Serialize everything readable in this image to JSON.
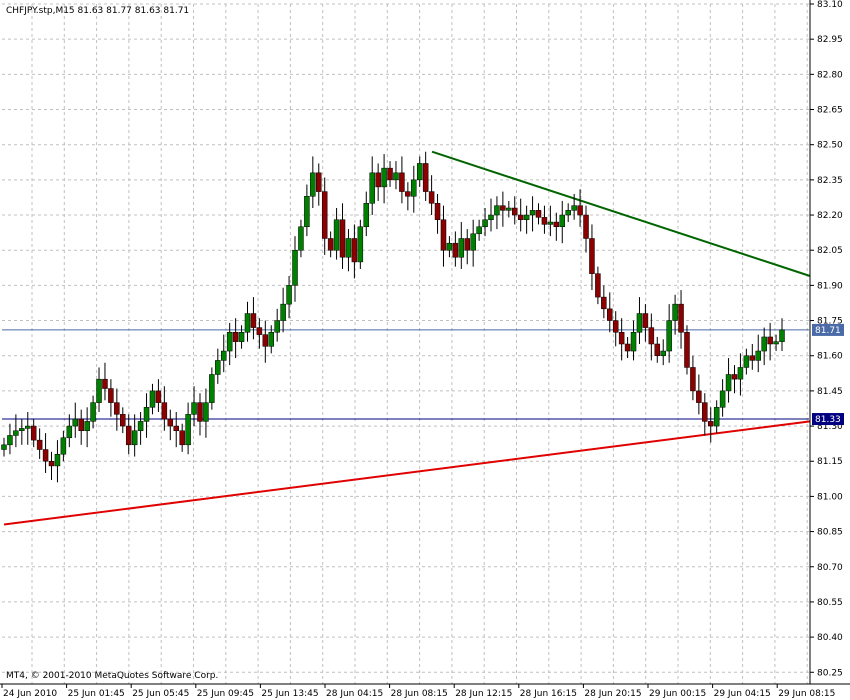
{
  "header": {
    "title": "CHFJPY.stp,M15  81.63 81.77 81.63 81.71",
    "copyright": "MT4, © 2001-2010 MetaQuotes Software Corp."
  },
  "colors": {
    "background": "#ffffff",
    "grid": "#c0c0c0",
    "bull_candle": "#008000",
    "bear_candle": "#8b0000",
    "resistance_line": "#006400",
    "support_line": "#e00000",
    "bid_line": "#4a6aa8",
    "support_hline": "#000080"
  },
  "chart_data": {
    "type": "candlestick",
    "symbol": "CHFJPY.stp",
    "timeframe": "M15",
    "ohlc_current": {
      "open": 81.63,
      "high": 81.77,
      "low": 81.63,
      "close": 81.71
    },
    "ylim": [
      80.2,
      83.1
    ],
    "y_ticks": [
      "83.10",
      "82.95",
      "82.80",
      "82.65",
      "82.50",
      "82.35",
      "82.20",
      "82.05",
      "81.90",
      "81.75",
      "81.60",
      "81.45",
      "81.30",
      "81.15",
      "81.00",
      "80.85",
      "80.70",
      "80.55",
      "80.40",
      "80.25"
    ],
    "x_ticks": [
      "24 Jun 2010",
      "25 Jun 01:45",
      "25 Jun 05:45",
      "25 Jun 09:45",
      "25 Jun 13:45",
      "28 Jun 04:15",
      "28 Jun 08:15",
      "28 Jun 12:15",
      "28 Jun 16:15",
      "28 Jun 20:15",
      "29 Jun 00:15",
      "29 Jun 04:15",
      "29 Jun 08:15"
    ],
    "price_labels": [
      {
        "text": "81.71",
        "value": 81.71,
        "kind": "bid"
      },
      {
        "text": "81.33",
        "value": 81.33,
        "kind": "support"
      }
    ],
    "trendlines": [
      {
        "name": "resistance",
        "color": "#006400",
        "start": {
          "bar": 0,
          "price": 82.47
        },
        "end": {
          "bar": 1,
          "price": 81.94
        }
      },
      {
        "name": "support",
        "color": "#e00000",
        "start": {
          "bar": 0,
          "price": 80.88
        },
        "end": {
          "bar": 1,
          "price": 81.32
        }
      }
    ],
    "closes": [
      81.22,
      81.26,
      81.28,
      81.29,
      81.3,
      81.24,
      81.2,
      81.15,
      81.13,
      81.18,
      81.25,
      81.3,
      81.33,
      81.28,
      81.32,
      81.4,
      81.5,
      81.46,
      81.4,
      81.35,
      81.3,
      81.22,
      81.28,
      81.32,
      81.38,
      81.45,
      81.4,
      81.33,
      81.3,
      81.28,
      81.22,
      81.35,
      81.4,
      81.32,
      81.4,
      81.52,
      81.58,
      81.62,
      81.7,
      81.66,
      81.7,
      81.78,
      81.72,
      81.69,
      81.64,
      81.7,
      81.75,
      81.82,
      81.9,
      82.05,
      82.15,
      82.28,
      82.38,
      82.3,
      82.1,
      82.05,
      82.18,
      82.02,
      82.1,
      82.0,
      82.15,
      82.25,
      82.38,
      82.32,
      82.4,
      82.35,
      82.38,
      82.3,
      82.28,
      82.35,
      82.42,
      82.3,
      82.25,
      82.18,
      82.05,
      82.08,
      82.02,
      82.1,
      82.05,
      82.12,
      82.15,
      82.18,
      82.2,
      82.24,
      82.22,
      82.23,
      82.2,
      82.18,
      82.2,
      82.22,
      82.19,
      82.16,
      82.17,
      82.15,
      82.2,
      82.22,
      82.24,
      82.2,
      82.1,
      81.95,
      81.85,
      81.8,
      81.75,
      81.7,
      81.65,
      81.62,
      81.7,
      81.78,
      81.72,
      81.65,
      81.6,
      81.62,
      81.75,
      81.82,
      81.7,
      81.55,
      81.45,
      81.4,
      81.32,
      81.3,
      81.38,
      81.45,
      81.52,
      81.5,
      81.55,
      81.6,
      81.58,
      81.62,
      81.68,
      81.65,
      81.66,
      81.71
    ]
  }
}
